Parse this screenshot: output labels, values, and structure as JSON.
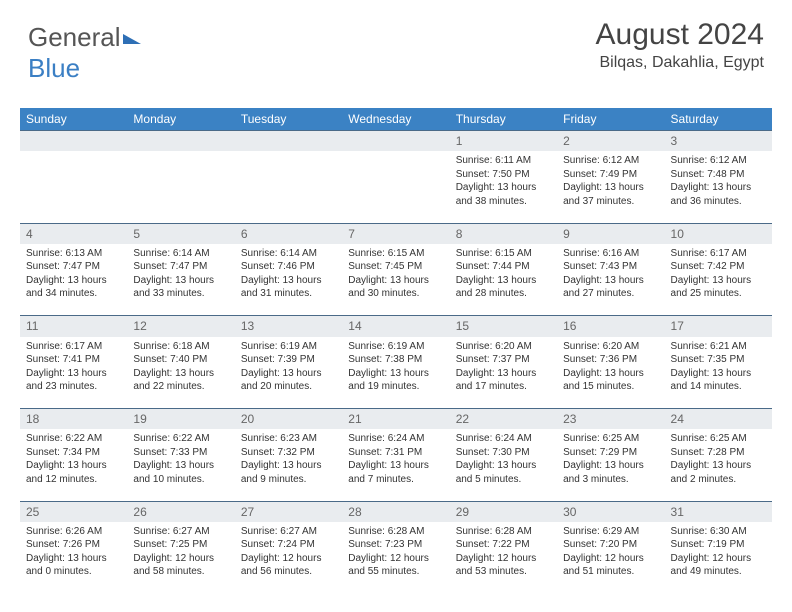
{
  "brand": {
    "part1": "General",
    "part2": "Blue"
  },
  "header": {
    "title": "August 2024",
    "location": "Bilqas, Dakahlia, Egypt"
  },
  "colors": {
    "header_bg": "#3b82c4",
    "header_text": "#ffffff",
    "daynum_bg": "#e9ecef",
    "daynum_border": "#4a6a88",
    "text": "#333333",
    "brand_blue": "#3b7fc4"
  },
  "dayHeaders": [
    "Sunday",
    "Monday",
    "Tuesday",
    "Wednesday",
    "Thursday",
    "Friday",
    "Saturday"
  ],
  "weeks": [
    [
      null,
      null,
      null,
      null,
      {
        "n": "1",
        "sr": "6:11 AM",
        "ss": "7:50 PM",
        "dl": "13 hours and 38 minutes."
      },
      {
        "n": "2",
        "sr": "6:12 AM",
        "ss": "7:49 PM",
        "dl": "13 hours and 37 minutes."
      },
      {
        "n": "3",
        "sr": "6:12 AM",
        "ss": "7:48 PM",
        "dl": "13 hours and 36 minutes."
      }
    ],
    [
      {
        "n": "4",
        "sr": "6:13 AM",
        "ss": "7:47 PM",
        "dl": "13 hours and 34 minutes."
      },
      {
        "n": "5",
        "sr": "6:14 AM",
        "ss": "7:47 PM",
        "dl": "13 hours and 33 minutes."
      },
      {
        "n": "6",
        "sr": "6:14 AM",
        "ss": "7:46 PM",
        "dl": "13 hours and 31 minutes."
      },
      {
        "n": "7",
        "sr": "6:15 AM",
        "ss": "7:45 PM",
        "dl": "13 hours and 30 minutes."
      },
      {
        "n": "8",
        "sr": "6:15 AM",
        "ss": "7:44 PM",
        "dl": "13 hours and 28 minutes."
      },
      {
        "n": "9",
        "sr": "6:16 AM",
        "ss": "7:43 PM",
        "dl": "13 hours and 27 minutes."
      },
      {
        "n": "10",
        "sr": "6:17 AM",
        "ss": "7:42 PM",
        "dl": "13 hours and 25 minutes."
      }
    ],
    [
      {
        "n": "11",
        "sr": "6:17 AM",
        "ss": "7:41 PM",
        "dl": "13 hours and 23 minutes."
      },
      {
        "n": "12",
        "sr": "6:18 AM",
        "ss": "7:40 PM",
        "dl": "13 hours and 22 minutes."
      },
      {
        "n": "13",
        "sr": "6:19 AM",
        "ss": "7:39 PM",
        "dl": "13 hours and 20 minutes."
      },
      {
        "n": "14",
        "sr": "6:19 AM",
        "ss": "7:38 PM",
        "dl": "13 hours and 19 minutes."
      },
      {
        "n": "15",
        "sr": "6:20 AM",
        "ss": "7:37 PM",
        "dl": "13 hours and 17 minutes."
      },
      {
        "n": "16",
        "sr": "6:20 AM",
        "ss": "7:36 PM",
        "dl": "13 hours and 15 minutes."
      },
      {
        "n": "17",
        "sr": "6:21 AM",
        "ss": "7:35 PM",
        "dl": "13 hours and 14 minutes."
      }
    ],
    [
      {
        "n": "18",
        "sr": "6:22 AM",
        "ss": "7:34 PM",
        "dl": "13 hours and 12 minutes."
      },
      {
        "n": "19",
        "sr": "6:22 AM",
        "ss": "7:33 PM",
        "dl": "13 hours and 10 minutes."
      },
      {
        "n": "20",
        "sr": "6:23 AM",
        "ss": "7:32 PM",
        "dl": "13 hours and 9 minutes."
      },
      {
        "n": "21",
        "sr": "6:24 AM",
        "ss": "7:31 PM",
        "dl": "13 hours and 7 minutes."
      },
      {
        "n": "22",
        "sr": "6:24 AM",
        "ss": "7:30 PM",
        "dl": "13 hours and 5 minutes."
      },
      {
        "n": "23",
        "sr": "6:25 AM",
        "ss": "7:29 PM",
        "dl": "13 hours and 3 minutes."
      },
      {
        "n": "24",
        "sr": "6:25 AM",
        "ss": "7:28 PM",
        "dl": "13 hours and 2 minutes."
      }
    ],
    [
      {
        "n": "25",
        "sr": "6:26 AM",
        "ss": "7:26 PM",
        "dl": "13 hours and 0 minutes."
      },
      {
        "n": "26",
        "sr": "6:27 AM",
        "ss": "7:25 PM",
        "dl": "12 hours and 58 minutes."
      },
      {
        "n": "27",
        "sr": "6:27 AM",
        "ss": "7:24 PM",
        "dl": "12 hours and 56 minutes."
      },
      {
        "n": "28",
        "sr": "6:28 AM",
        "ss": "7:23 PM",
        "dl": "12 hours and 55 minutes."
      },
      {
        "n": "29",
        "sr": "6:28 AM",
        "ss": "7:22 PM",
        "dl": "12 hours and 53 minutes."
      },
      {
        "n": "30",
        "sr": "6:29 AM",
        "ss": "7:20 PM",
        "dl": "12 hours and 51 minutes."
      },
      {
        "n": "31",
        "sr": "6:30 AM",
        "ss": "7:19 PM",
        "dl": "12 hours and 49 minutes."
      }
    ]
  ],
  "labels": {
    "sunrise": "Sunrise:",
    "sunset": "Sunset:",
    "daylight": "Daylight:"
  }
}
